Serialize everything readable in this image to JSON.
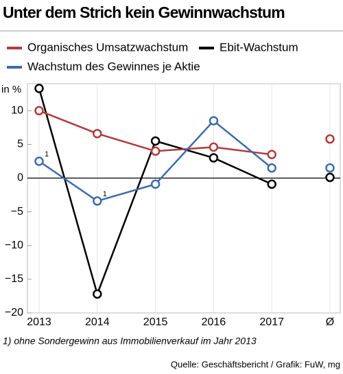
{
  "chart_data": {
    "type": "line",
    "title": "Unter dem Strich kein Gewinnwachstum",
    "y_axis_label": "in %",
    "categories": [
      "2013",
      "2014",
      "2015",
      "2016",
      "2017",
      "Ø"
    ],
    "series": [
      {
        "name": "Organisches Umsatzwachstum",
        "color": "#b5393a",
        "values": [
          10,
          6.6,
          4,
          4.6,
          3.5,
          5.8
        ]
      },
      {
        "name": "Ebit-Wachstum",
        "color": "#000000",
        "values": [
          13.3,
          -17.2,
          5.5,
          3,
          -0.9,
          0.1
        ]
      },
      {
        "name": "Wachstum des Gewinnes je Aktie",
        "color": "#3b6bb0",
        "values": [
          2.5,
          -3.4,
          -0.9,
          8.5,
          1.5,
          1.5
        ]
      }
    ],
    "ylim": [
      -20,
      14
    ],
    "yticks": [
      10,
      5,
      0,
      {
        "value": -5,
        "label": "−5"
      },
      {
        "value": -10,
        "label": "−10"
      },
      {
        "value": -15,
        "label": "−15"
      },
      {
        "value": -20,
        "label": "−20"
      }
    ],
    "annotations": [
      "1",
      "1"
    ],
    "footnote": "1) ohne Sondergewinn aus Immobilienverkauf im Jahr 2013",
    "source": "Quelle: Geschäftsbericht / Grafik: FuW, mg"
  }
}
